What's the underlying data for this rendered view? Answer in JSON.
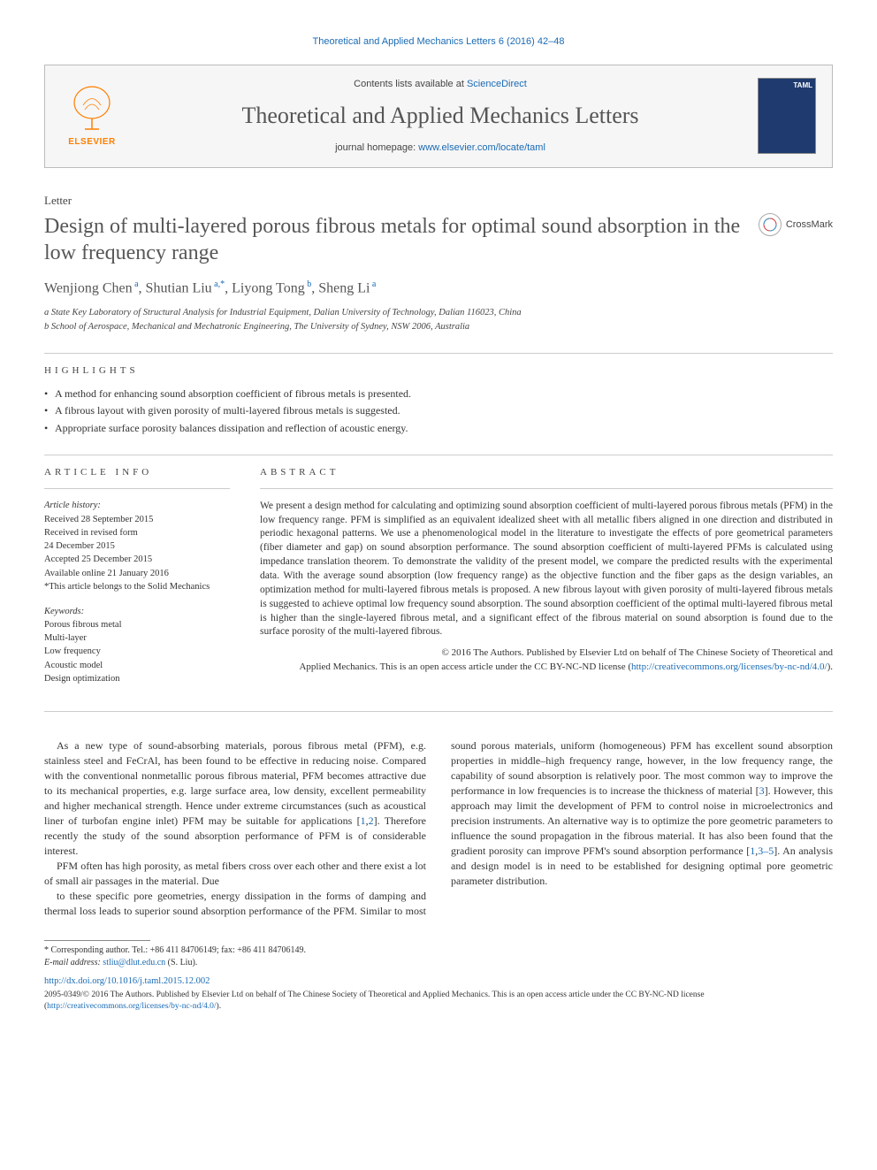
{
  "running_head": "Theoretical and Applied Mechanics Letters 6 (2016) 42–48",
  "masthead": {
    "contents_prefix": "Contents lists available at ",
    "contents_link": "ScienceDirect",
    "journal_name": "Theoretical and Applied Mechanics Letters",
    "homepage_prefix": "journal homepage: ",
    "homepage_link": "www.elsevier.com/locate/taml",
    "elsevier_label": "ELSEVIER",
    "cover_label": "TAML"
  },
  "letter_label": "Letter",
  "title": "Design of multi-layered porous fibrous metals for optimal sound absorption in the low frequency range",
  "crossmark_label": "CrossMark",
  "authors_html": "Wenjiong Chen<sup> a</sup>, Shutian Liu<sup> a,*</sup>, Liyong Tong<sup> b</sup>, Sheng Li<sup> a</sup>",
  "affiliations": [
    "a State Key Laboratory of Structural Analysis for Industrial Equipment, Dalian University of Technology, Dalian 116023, China",
    "b School of Aerospace, Mechanical and Mechatronic Engineering, The University of Sydney, NSW 2006, Australia"
  ],
  "highlights_heading": "HIGHLIGHTS",
  "highlights": [
    "A method for enhancing sound absorption coefficient of fibrous metals is presented.",
    "A fibrous layout with given porosity of multi-layered fibrous metals is suggested.",
    "Appropriate surface porosity balances dissipation and reflection of acoustic energy."
  ],
  "article_info_heading": "ARTICLE INFO",
  "article_info": {
    "history_label": "Article history:",
    "received": "Received 28 September 2015",
    "revised1": "Received in revised form",
    "revised2": "24 December 2015",
    "accepted": "Accepted 25 December 2015",
    "online": "Available online 21 January 2016",
    "note": "*This article belongs to the Solid Mechanics",
    "keywords_label": "Keywords:",
    "keywords": [
      "Porous fibrous metal",
      "Multi-layer",
      "Low frequency",
      "Acoustic model",
      "Design optimization"
    ]
  },
  "abstract_heading": "ABSTRACT",
  "abstract_text": "We present a design method for calculating and optimizing sound absorption coefficient of multi-layered porous fibrous metals (PFM) in the low frequency range. PFM is simplified as an equivalent idealized sheet with all metallic fibers aligned in one direction and distributed in periodic hexagonal patterns. We use a phenomenological model in the literature to investigate the effects of pore geometrical parameters (fiber diameter and gap) on sound absorption performance. The sound absorption coefficient of multi-layered PFMs is calculated using impedance translation theorem. To demonstrate the validity of the present model, we compare the predicted results with the experimental data. With the average sound absorption (low frequency range) as the objective function and the fiber gaps as the design variables, an optimization method for multi-layered fibrous metals is proposed. A new fibrous layout with given porosity of multi-layered fibrous metals is suggested to achieve optimal low frequency sound absorption. The sound absorption coefficient of the optimal multi-layered fibrous metal is higher than the single-layered fibrous metal, and a significant effect of the fibrous material on sound absorption is found due to the surface porosity of the multi-layered fibrous.",
  "copyright": {
    "line1": "© 2016 The Authors. Published by Elsevier Ltd on behalf of The Chinese Society of Theoretical and",
    "line2": "Applied Mechanics. This is an open access article under the CC BY-NC-ND license (",
    "link": "http://creativecommons.org/licenses/by-nc-nd/4.0/",
    "line3": ")."
  },
  "body": {
    "p1a": "As a new type of sound-absorbing materials, porous fibrous metal (PFM), e.g. stainless steel and FeCrAl, has been found to be effective in reducing noise. Compared with the conventional nonmetallic porous fibrous material, PFM becomes attractive due to its mechanical properties, e.g. large surface area, low density, excellent permeability and higher mechanical strength. Hence under extreme circumstances (such as acoustical liner of turbofan engine inlet) PFM may be suitable for applications [",
    "p1_ref1": "1",
    "p1_sep": ",",
    "p1_ref2": "2",
    "p1b": "]. Therefore recently the study of the sound absorption performance of PFM is of considerable interest.",
    "p2": "PFM often has high porosity, as metal fibers cross over each other and there exist a lot of small air passages in the material. Due",
    "p3a": "to these specific pore geometries, energy dissipation in the forms of damping and thermal loss leads to superior sound absorption performance of the PFM. Similar to most sound porous materials, uniform (homogeneous) PFM has excellent sound absorption properties in middle–high frequency range, however, in the low frequency range, the capability of sound absorption is relatively poor. The most common way to improve the performance in low frequencies is to increase the thickness of material [",
    "p3_ref3": "3",
    "p3b": "]. However, this approach may limit the development of PFM to control noise in microelectronics and precision instruments. An alternative way is to optimize the pore geometric parameters to influence the sound propagation in the fibrous material. It has also been found that the gradient porosity can improve PFM's sound absorption performance [",
    "p3_ref1": "1",
    "p3_sep1": ",",
    "p3_reflink": "3–5",
    "p3c": "]. An analysis and design model is in need to be established for designing optimal pore geometric parameter distribution."
  },
  "footnotes": {
    "corr_label": "* Corresponding author. Tel.: +86 411 84706149; fax: +86 411 84706149.",
    "email_label": "E-mail address: ",
    "email": "stliu@dlut.edu.cn",
    "email_suffix": " (S. Liu)."
  },
  "doi": "http://dx.doi.org/10.1016/j.taml.2015.12.002",
  "license_footer": {
    "text1": "2095-0349/© 2016 The Authors. Published by Elsevier Ltd on behalf of The Chinese Society of Theoretical and Applied Mechanics. This is an open access article under the CC BY-NC-ND license (",
    "link": "http://creativecommons.org/licenses/by-nc-nd/4.0/",
    "text2": ")."
  },
  "colors": {
    "link": "#1a6bb5",
    "elsevier_orange": "#ff7f00",
    "heading_gray": "#565656"
  }
}
